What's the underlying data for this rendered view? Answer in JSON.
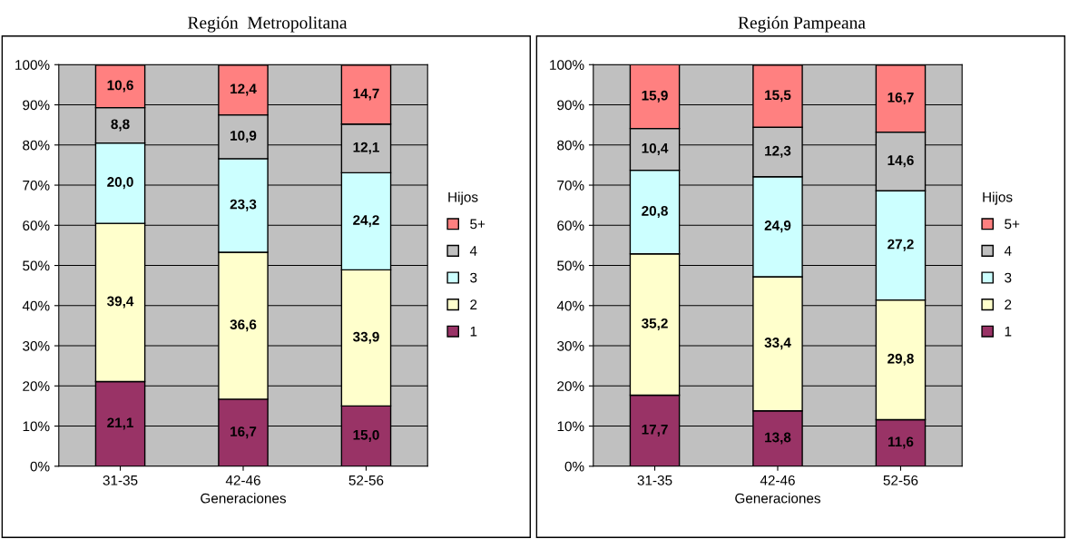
{
  "chart_data": [
    {
      "type": "bar",
      "stacked": true,
      "title": "Región  Metropolitana",
      "xlabel": "Generaciones",
      "legend_title": "Hijos",
      "legend": "right",
      "grid": "y",
      "categories": [
        "31-35",
        "42-46",
        "52-56"
      ],
      "ylim": [
        0,
        100
      ],
      "yticks": [
        {
          "value": 0,
          "label": "0%"
        },
        {
          "value": 10,
          "label": "10%"
        },
        {
          "value": 20,
          "label": "20%"
        },
        {
          "value": 30,
          "label": "30%"
        },
        {
          "value": 40,
          "label": "40%"
        },
        {
          "value": 50,
          "label": "50%"
        },
        {
          "value": 60,
          "label": "60%"
        },
        {
          "value": 70,
          "label": "70%"
        },
        {
          "value": 80,
          "label": "80%"
        },
        {
          "value": 90,
          "label": "90%"
        },
        {
          "value": 100,
          "label": "100%"
        }
      ],
      "series": [
        {
          "name": "1",
          "color": "#993366",
          "values": [
            21.1,
            16.7,
            15.0
          ],
          "value_labels": [
            "21,1",
            "16,7",
            "15,0"
          ]
        },
        {
          "name": "2",
          "color": "#ffffcc",
          "values": [
            39.4,
            36.6,
            33.9
          ],
          "value_labels": [
            "39,4",
            "36,6",
            "33,9"
          ]
        },
        {
          "name": "3",
          "color": "#ccffff",
          "values": [
            20.0,
            23.3,
            24.2
          ],
          "value_labels": [
            "20,0",
            "23,3",
            "24,2"
          ]
        },
        {
          "name": "4",
          "color": "#c0c0c0",
          "values": [
            8.8,
            10.9,
            12.1
          ],
          "value_labels": [
            "8,8",
            "10,9",
            "12,1"
          ]
        },
        {
          "name": "5+",
          "color": "#ff8080",
          "values": [
            10.6,
            12.4,
            14.7
          ],
          "value_labels": [
            "10,6",
            "12,4",
            "14,7"
          ]
        }
      ]
    },
    {
      "type": "bar",
      "stacked": true,
      "title": "Región Pampeana",
      "xlabel": "Generaciones",
      "legend_title": "Hijos",
      "legend": "right",
      "grid": "y",
      "categories": [
        "31-35",
        "42-46",
        "52-56"
      ],
      "ylim": [
        0,
        100
      ],
      "yticks": [
        {
          "value": 0,
          "label": "0%"
        },
        {
          "value": 10,
          "label": "10%"
        },
        {
          "value": 20,
          "label": "20%"
        },
        {
          "value": 30,
          "label": "30%"
        },
        {
          "value": 40,
          "label": "40%"
        },
        {
          "value": 50,
          "label": "50%"
        },
        {
          "value": 60,
          "label": "60%"
        },
        {
          "value": 70,
          "label": "70%"
        },
        {
          "value": 80,
          "label": "80%"
        },
        {
          "value": 90,
          "label": "90%"
        },
        {
          "value": 100,
          "label": "100%"
        }
      ],
      "series": [
        {
          "name": "1",
          "color": "#993366",
          "values": [
            17.7,
            13.8,
            11.6
          ],
          "value_labels": [
            "17,7",
            "13,8",
            "11,6"
          ]
        },
        {
          "name": "2",
          "color": "#ffffcc",
          "values": [
            35.2,
            33.4,
            29.8
          ],
          "value_labels": [
            "35,2",
            "33,4",
            "29,8"
          ]
        },
        {
          "name": "3",
          "color": "#ccffff",
          "values": [
            20.8,
            24.9,
            27.2
          ],
          "value_labels": [
            "20,8",
            "24,9",
            "27,2"
          ]
        },
        {
          "name": "4",
          "color": "#c0c0c0",
          "values": [
            10.4,
            12.3,
            14.6
          ],
          "value_labels": [
            "10,4",
            "12,3",
            "14,6"
          ]
        },
        {
          "name": "5+",
          "color": "#ff8080",
          "values": [
            15.9,
            15.5,
            16.7
          ],
          "value_labels": [
            "15,9",
            "15,5",
            "16,7"
          ]
        }
      ]
    }
  ]
}
